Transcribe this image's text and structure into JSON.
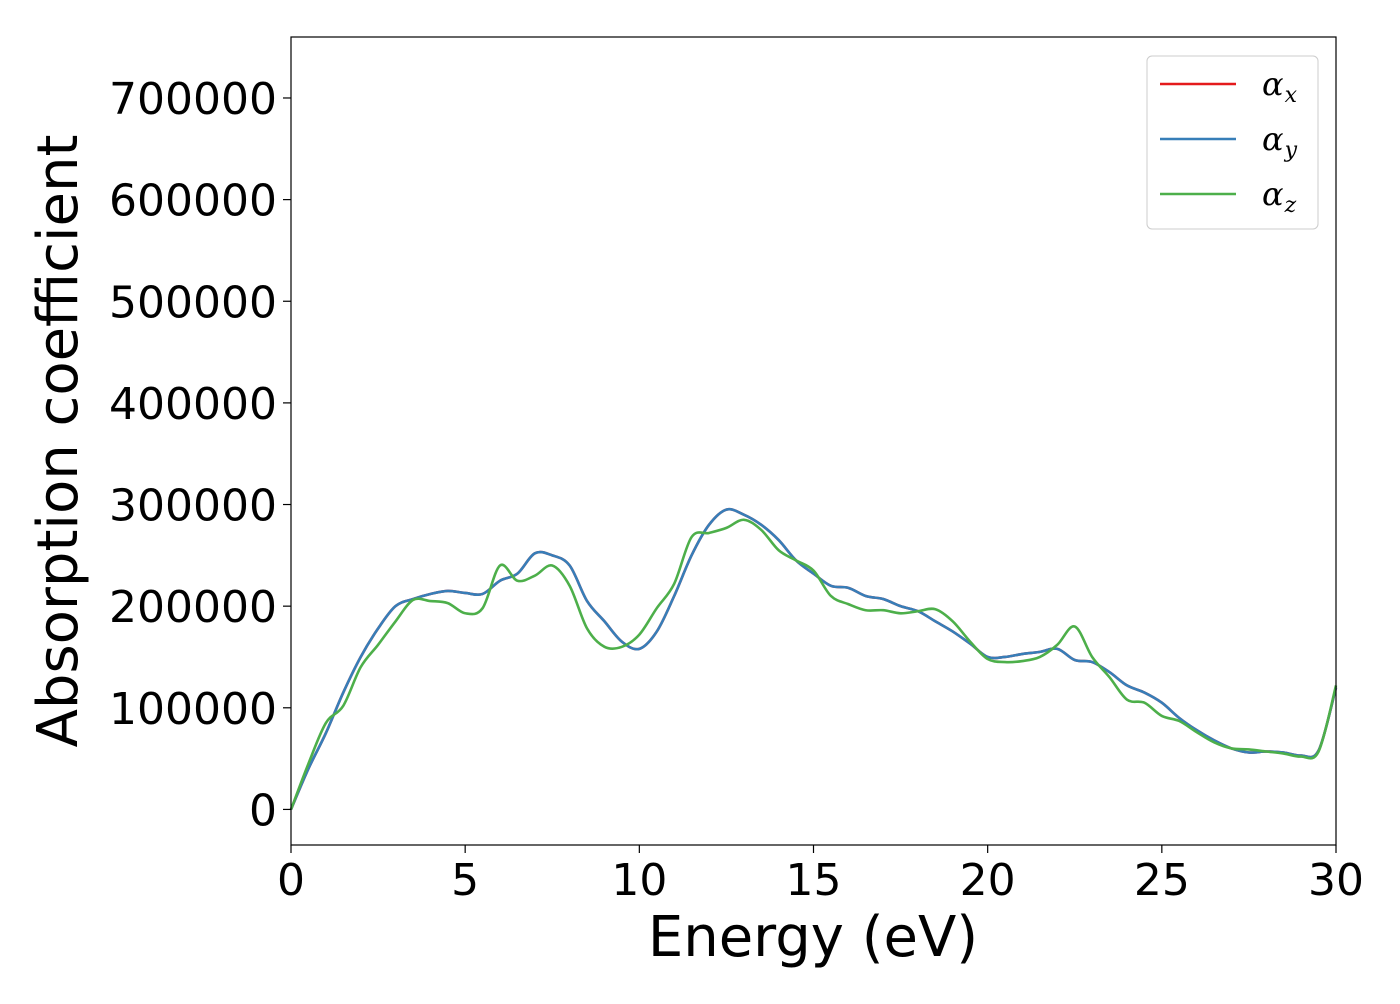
{
  "chart_data": {
    "type": "line",
    "title": "",
    "xlabel": "Energy (eV)",
    "ylabel": "Absorption coefficient",
    "xlim": [
      0,
      30
    ],
    "ylim": [
      -35000,
      760000
    ],
    "xticks": [
      0,
      5,
      10,
      15,
      20,
      25,
      30
    ],
    "xtick_labels": [
      "0",
      "5",
      "10",
      "15",
      "20",
      "25",
      "30"
    ],
    "yticks": [
      0,
      100000,
      200000,
      300000,
      400000,
      500000,
      600000,
      700000
    ],
    "ytick_labels": [
      "0",
      "100000",
      "200000",
      "300000",
      "400000",
      "500000",
      "600000",
      "700000"
    ],
    "grid": false,
    "legend_position": "top-right",
    "series": [
      {
        "name": "α_x",
        "legend_symbol": "α",
        "legend_subscript": "x",
        "color": "#e41a1c",
        "x": [
          0,
          0.5,
          1,
          1.5,
          2,
          2.5,
          3,
          3.5,
          4,
          4.5,
          5,
          5.5,
          6,
          6.5,
          7,
          7.5,
          8,
          8.5,
          9,
          9.5,
          10,
          10.5,
          11,
          11.5,
          12,
          12.5,
          13,
          13.5,
          14,
          14.5,
          15,
          15.5,
          16,
          16.5,
          17,
          17.5,
          18,
          18.5,
          19,
          19.5,
          20,
          20.5,
          21,
          21.5,
          22,
          22.5,
          23,
          23.5,
          24,
          24.5,
          25,
          25.5,
          26,
          26.5,
          27,
          27.5,
          28,
          28.5,
          29,
          29.5,
          30
        ],
        "values": [
          0,
          40000,
          75000,
          115000,
          150000,
          178000,
          200000,
          207000,
          212000,
          215000,
          213000,
          212000,
          225000,
          232000,
          252000,
          250000,
          240000,
          205000,
          185000,
          165000,
          158000,
          175000,
          210000,
          250000,
          280000,
          295000,
          290000,
          280000,
          265000,
          245000,
          232000,
          220000,
          218000,
          210000,
          207000,
          200000,
          195000,
          185000,
          175000,
          163000,
          150000,
          150000,
          153000,
          155000,
          158000,
          147000,
          145000,
          135000,
          122000,
          115000,
          105000,
          90000,
          78000,
          68000,
          60000,
          56000,
          57000,
          56000,
          53000,
          58000,
          120000
        ]
      },
      {
        "name": "α_y",
        "legend_symbol": "α",
        "legend_subscript": "y",
        "color": "#377eb8",
        "x": [
          0,
          0.5,
          1,
          1.5,
          2,
          2.5,
          3,
          3.5,
          4,
          4.5,
          5,
          5.5,
          6,
          6.5,
          7,
          7.5,
          8,
          8.5,
          9,
          9.5,
          10,
          10.5,
          11,
          11.5,
          12,
          12.5,
          13,
          13.5,
          14,
          14.5,
          15,
          15.5,
          16,
          16.5,
          17,
          17.5,
          18,
          18.5,
          19,
          19.5,
          20,
          20.5,
          21,
          21.5,
          22,
          22.5,
          23,
          23.5,
          24,
          24.5,
          25,
          25.5,
          26,
          26.5,
          27,
          27.5,
          28,
          28.5,
          29,
          29.5,
          30
        ],
        "values": [
          0,
          40000,
          75000,
          115000,
          150000,
          178000,
          200000,
          207000,
          212000,
          215000,
          213000,
          212000,
          225000,
          232000,
          252000,
          250000,
          240000,
          205000,
          185000,
          165000,
          158000,
          175000,
          210000,
          250000,
          280000,
          295000,
          290000,
          280000,
          265000,
          245000,
          232000,
          220000,
          218000,
          210000,
          207000,
          200000,
          195000,
          185000,
          175000,
          163000,
          150000,
          150000,
          153000,
          155000,
          158000,
          147000,
          145000,
          135000,
          122000,
          115000,
          105000,
          90000,
          78000,
          68000,
          60000,
          56000,
          57000,
          56000,
          53000,
          58000,
          120000
        ]
      },
      {
        "name": "α_z",
        "legend_symbol": "α",
        "legend_subscript": "z",
        "color": "#4daf4a",
        "x": [
          0,
          0.5,
          1,
          1.5,
          2,
          2.5,
          3,
          3.5,
          4,
          4.5,
          5,
          5.5,
          6,
          6.5,
          7,
          7.5,
          8,
          8.5,
          9,
          9.5,
          10,
          10.5,
          11,
          11.5,
          12,
          12.5,
          13,
          13.5,
          14,
          14.5,
          15,
          15.5,
          16,
          16.5,
          17,
          17.5,
          18,
          18.5,
          19,
          19.5,
          20,
          20.5,
          21,
          21.5,
          22,
          22.5,
          23,
          23.5,
          24,
          24.5,
          25,
          25.5,
          26,
          26.5,
          27,
          27.5,
          28,
          28.5,
          29,
          29.5,
          30
        ],
        "values": [
          0,
          45000,
          85000,
          102000,
          140000,
          162000,
          185000,
          206000,
          205000,
          203000,
          193000,
          198000,
          240000,
          225000,
          230000,
          240000,
          220000,
          178000,
          160000,
          160000,
          172000,
          198000,
          222000,
          268000,
          272000,
          277000,
          285000,
          275000,
          255000,
          245000,
          235000,
          210000,
          202000,
          196000,
          196000,
          193000,
          195000,
          197000,
          185000,
          165000,
          148000,
          145000,
          146000,
          150000,
          162000,
          180000,
          150000,
          130000,
          108000,
          105000,
          92000,
          87000,
          76000,
          66000,
          60000,
          59000,
          57000,
          55000,
          52000,
          57000,
          122000
        ]
      }
    ]
  }
}
